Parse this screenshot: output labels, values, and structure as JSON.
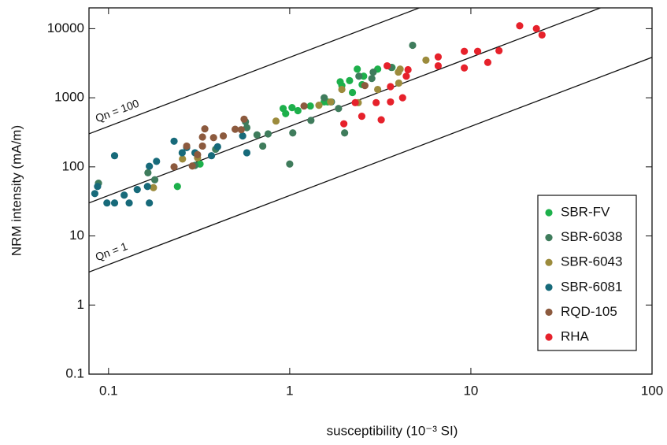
{
  "chart_data": {
    "type": "scatter",
    "xlabel": "susceptibility (10⁻³ SI)",
    "ylabel": "NRM intensity (mA/m)",
    "xscale": "log",
    "yscale": "log",
    "xlim": [
      0.078,
      100
    ],
    "ylim": [
      0.1,
      20000
    ],
    "xticks": [
      0.1,
      1,
      10,
      100
    ],
    "yticks": [
      0.1,
      1,
      10,
      100,
      1000,
      10000
    ],
    "legend": "lower right",
    "reference_lines": [
      {
        "label": "Qn = 100",
        "coef": 3850
      },
      {
        "coef": 385
      },
      {
        "label": "Qn = 1",
        "coef": 38.5
      }
    ],
    "series": [
      {
        "name": "SBR-FV",
        "color": "#1db04b",
        "x": [
          3.06,
          2.36,
          2.56,
          2.14,
          1.9,
          1.55,
          1.62,
          1.3,
          1.11,
          1.03,
          0.92,
          0.95,
          3.67,
          2.51,
          2.22,
          0.32,
          0.24,
          1.94
        ],
        "y": [
          2600,
          2600,
          2050,
          1770,
          1700,
          870,
          870,
          760,
          650,
          720,
          700,
          590,
          2750,
          1550,
          1190,
          110,
          52,
          1500
        ]
      },
      {
        "name": "SBR-6038",
        "color": "#3f7c5c",
        "x": [
          4.77,
          3.64,
          2.89,
          2.84,
          2.41,
          1.55,
          1.7,
          1.31,
          1.04,
          1.0,
          0.76,
          0.66,
          0.71,
          0.58,
          0.57,
          2.01,
          1.86,
          0.39,
          0.3,
          0.18,
          0.088,
          0.165
        ],
        "y": [
          5750,
          2750,
          2350,
          1900,
          2050,
          1000,
          870,
          470,
          310,
          110,
          300,
          290,
          200,
          370,
          450,
          310,
          700,
          180,
          105,
          65,
          58,
          82
        ]
      },
      {
        "name": "SBR-6043",
        "color": "#9c8b3c",
        "x": [
          5.65,
          4.07,
          3.98,
          3.06,
          2.39,
          1.94,
          1.68,
          1.45,
          0.84,
          4.0,
          0.177,
          0.256,
          0.31
        ],
        "y": [
          3500,
          2600,
          2350,
          1320,
          850,
          1320,
          870,
          780,
          460,
          1630,
          50,
          130,
          135
        ]
      },
      {
        "name": "SBR-6081",
        "color": "#176a7a",
        "x": [
          0.084,
          0.087,
          0.098,
          0.108,
          0.122,
          0.144,
          0.168,
          0.164,
          0.108,
          0.168,
          0.184,
          0.23,
          0.255,
          0.27,
          0.3,
          0.37,
          0.4,
          0.58,
          0.55,
          0.13
        ],
        "y": [
          41,
          52,
          30,
          30,
          39,
          47,
          30,
          52,
          145,
          102,
          120,
          235,
          160,
          190,
          160,
          145,
          195,
          160,
          280,
          30
        ]
      },
      {
        "name": "RQD-105",
        "color": "#8c5a3e",
        "x": [
          0.56,
          0.54,
          0.5,
          0.43,
          0.38,
          0.33,
          0.33,
          0.31,
          0.27,
          0.23,
          0.29,
          0.34,
          1.2,
          2.6
        ],
        "y": [
          490,
          345,
          350,
          280,
          265,
          270,
          200,
          150,
          200,
          100,
          103,
          355,
          760,
          1500
        ]
      },
      {
        "name": "RHA",
        "color": "#e6212b",
        "x": [
          18.6,
          23,
          24.7,
          14.3,
          10.9,
          9.2,
          12.4,
          9.2,
          6.6,
          6.6,
          4.5,
          4.4,
          4.2,
          3.6,
          3.6,
          3.0,
          3.2,
          2.5,
          2.3,
          1.99,
          3.45
        ],
        "y": [
          11000,
          10000,
          8100,
          4800,
          4700,
          4700,
          3250,
          2700,
          3900,
          2900,
          2550,
          2050,
          1000,
          1450,
          870,
          850,
          480,
          540,
          850,
          420,
          2900
        ]
      }
    ]
  }
}
